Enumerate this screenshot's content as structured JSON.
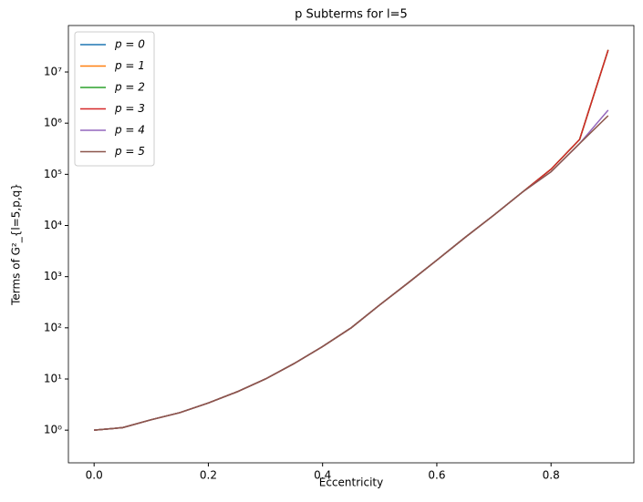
{
  "chart_data": {
    "type": "line",
    "title": "p Subterms for l=5",
    "xlabel": "Eccentricity",
    "ylabel": "Terms of G²_{l=5,p,q}",
    "x": [
      0,
      0.05,
      0.1,
      0.15,
      0.2,
      0.25,
      0.3,
      0.35,
      0.4,
      0.45,
      0.5,
      0.55,
      0.6,
      0.65,
      0.7,
      0.75,
      0.8,
      0.85,
      0.9
    ],
    "series": [
      {
        "name": "p = 0",
        "color": "#1f77b4",
        "values": [
          1,
          1.12,
          1.6,
          2.2,
          3.4,
          5.6,
          10,
          20,
          43,
          100,
          280,
          760,
          2100,
          5900,
          16000,
          45000,
          126000,
          480000,
          27000000
        ]
      },
      {
        "name": "p = 1",
        "color": "#ff7f0e",
        "values": [
          1,
          1.12,
          1.6,
          2.2,
          3.4,
          5.6,
          10,
          20,
          43,
          100,
          280,
          760,
          2100,
          5900,
          16000,
          45000,
          126000,
          480000,
          27000000
        ]
      },
      {
        "name": "p = 2",
        "color": "#2ca02c",
        "values": [
          1,
          1.12,
          1.6,
          2.2,
          3.4,
          5.6,
          10,
          20,
          43,
          100,
          280,
          760,
          2100,
          5900,
          16000,
          45000,
          126000,
          480000,
          27000000
        ]
      },
      {
        "name": "p = 3",
        "color": "#d62728",
        "values": [
          1,
          1.12,
          1.6,
          2.2,
          3.4,
          5.6,
          10,
          20,
          43,
          100,
          280,
          760,
          2100,
          5900,
          16000,
          45000,
          126000,
          480000,
          27000000
        ]
      },
      {
        "name": "p = 4",
        "color": "#9467bd",
        "values": [
          1,
          1.12,
          1.6,
          2.2,
          3.4,
          5.6,
          10,
          20,
          43,
          100,
          280,
          760,
          2100,
          5900,
          16000,
          45000,
          112000,
          400000,
          1800000
        ]
      },
      {
        "name": "p = 5",
        "color": "#8c564b",
        "values": [
          1,
          1.12,
          1.6,
          2.2,
          3.4,
          5.6,
          10,
          20,
          43,
          100,
          280,
          760,
          2100,
          5900,
          16000,
          45000,
          112000,
          400000,
          1400000
        ]
      }
    ],
    "xlim": [
      -0.045,
      0.945
    ],
    "xticks": [
      {
        "value": 0,
        "label": "0.0"
      },
      0.2,
      0.4,
      0.6,
      0.8
    ],
    "ylim": [
      0.23,
      81000000
    ],
    "yscale": "log",
    "yticks": [
      {
        "value": 1,
        "label": "10⁰"
      },
      {
        "value": 10,
        "label": "10¹"
      },
      {
        "value": 100,
        "label": "10²"
      },
      {
        "value": 1000,
        "label": "10³"
      },
      {
        "value": 10000,
        "label": "10⁴"
      },
      {
        "value": 100000,
        "label": "10⁵"
      },
      {
        "value": 1000000,
        "label": "10⁶"
      },
      {
        "value": 10000000,
        "label": "10⁷"
      }
    ],
    "legend": "upper left"
  }
}
